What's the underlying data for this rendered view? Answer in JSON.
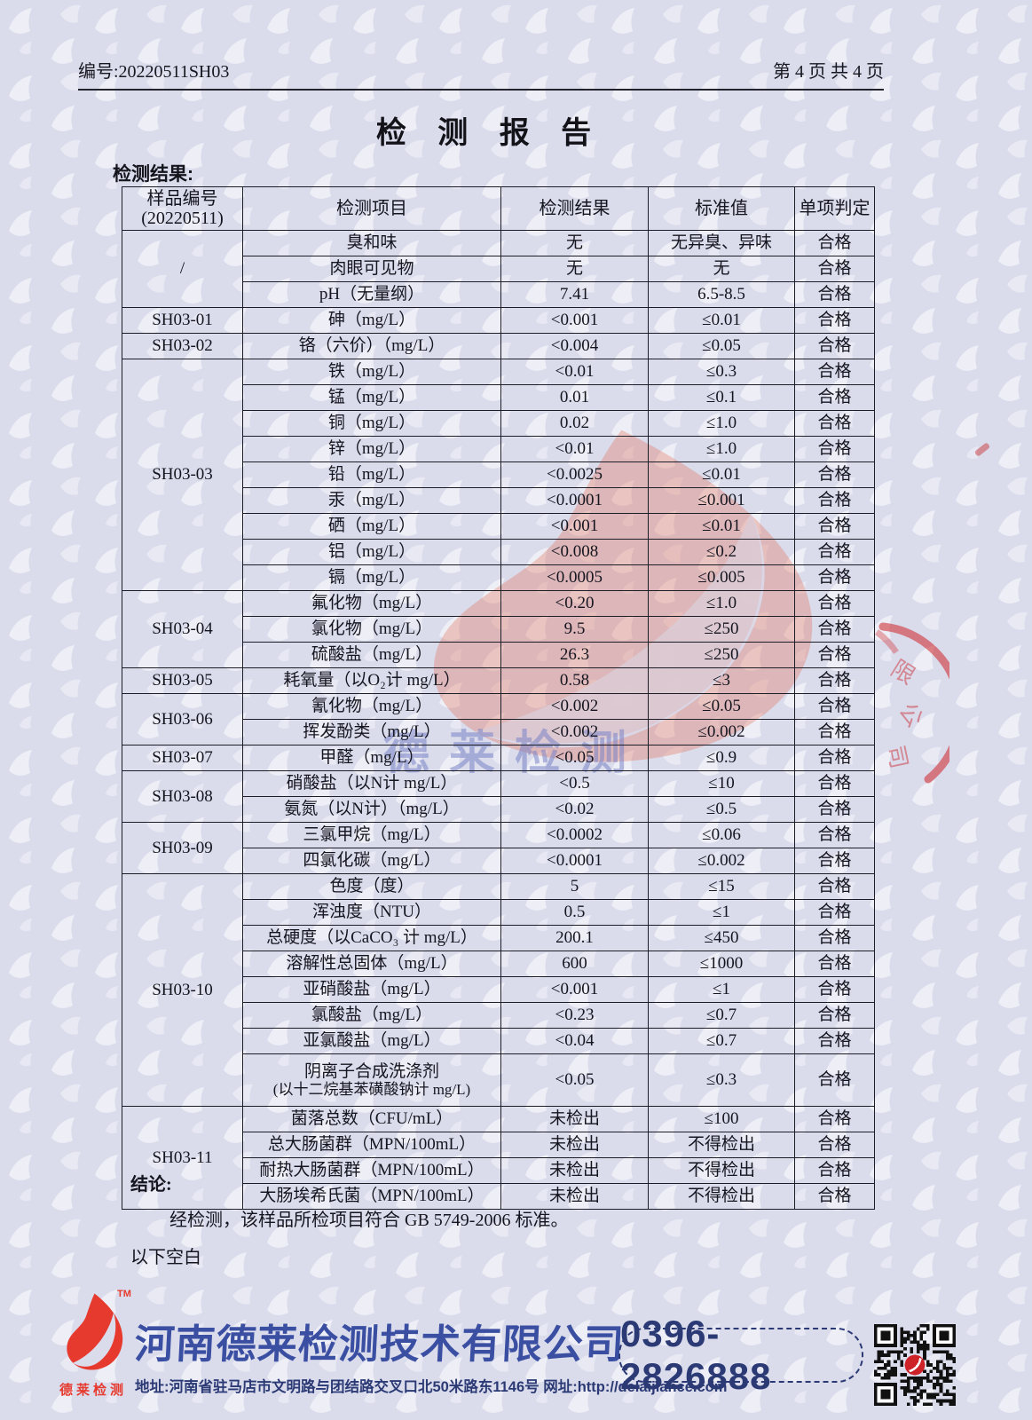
{
  "page": {
    "doc_number": "编号:20220511SH03",
    "page_indicator": "第 4 页 共 4 页",
    "title": "检 测 报 告",
    "section_heading": "检测结果:",
    "conclusion_label": "结论:",
    "conclusion_text": "经检测，该样品所检项目符合 GB 5749-2006 标准。",
    "blank_below": "以下空白"
  },
  "table": {
    "header": {
      "sample_id_line1": "样品编号",
      "sample_id_line2": "(20220511)",
      "item": "检测项目",
      "result": "检测结果",
      "standard": "标准值",
      "verdict": "单项判定"
    },
    "groups": [
      {
        "id": "/",
        "items": [
          {
            "name": "臭和味",
            "result": "无",
            "standard": "无异臭、异味",
            "verdict": "合格"
          },
          {
            "name": "肉眼可见物",
            "result": "无",
            "standard": "无",
            "verdict": "合格"
          },
          {
            "name": "pH（无量纲）",
            "result": "7.41",
            "standard": "6.5-8.5",
            "verdict": "合格"
          }
        ]
      },
      {
        "id": "SH03-01",
        "items": [
          {
            "name": "砷（mg/L）",
            "result": "<0.001",
            "standard": "≤0.01",
            "verdict": "合格"
          }
        ]
      },
      {
        "id": "SH03-02",
        "items": [
          {
            "name": "铬（六价）（mg/L）",
            "result": "<0.004",
            "standard": "≤0.05",
            "verdict": "合格"
          }
        ]
      },
      {
        "id": "SH03-03",
        "items": [
          {
            "name": "铁（mg/L）",
            "result": "<0.01",
            "standard": "≤0.3",
            "verdict": "合格"
          },
          {
            "name": "锰（mg/L）",
            "result": "0.01",
            "standard": "≤0.1",
            "verdict": "合格"
          },
          {
            "name": "铜（mg/L）",
            "result": "0.02",
            "standard": "≤1.0",
            "verdict": "合格"
          },
          {
            "name": "锌（mg/L）",
            "result": "<0.01",
            "standard": "≤1.0",
            "verdict": "合格"
          },
          {
            "name": "铅（mg/L）",
            "result": "<0.0025",
            "standard": "≤0.01",
            "verdict": "合格"
          },
          {
            "name": "汞（mg/L）",
            "result": "<0.0001",
            "standard": "≤0.001",
            "verdict": "合格"
          },
          {
            "name": "硒（mg/L）",
            "result": "<0.001",
            "standard": "≤0.01",
            "verdict": "合格"
          },
          {
            "name": "铝（mg/L）",
            "result": "<0.008",
            "standard": "≤0.2",
            "verdict": "合格"
          },
          {
            "name": "镉（mg/L）",
            "result": "<0.0005",
            "standard": "≤0.005",
            "verdict": "合格"
          }
        ]
      },
      {
        "id": "SH03-04",
        "items": [
          {
            "name": "氟化物（mg/L）",
            "result": "<0.20",
            "standard": "≤1.0",
            "verdict": "合格"
          },
          {
            "name": "氯化物（mg/L）",
            "result": "9.5",
            "standard": "≤250",
            "verdict": "合格"
          },
          {
            "name": "硫酸盐（mg/L）",
            "result": "26.3",
            "standard": "≤250",
            "verdict": "合格"
          }
        ]
      },
      {
        "id": "SH03-05",
        "items": [
          {
            "name": "耗氧量（以O₂计 mg/L）",
            "result": "0.58",
            "standard": "≤3",
            "verdict": "合格"
          }
        ]
      },
      {
        "id": "SH03-06",
        "items": [
          {
            "name": "氰化物（mg/L）",
            "result": "<0.002",
            "standard": "≤0.05",
            "verdict": "合格"
          },
          {
            "name": "挥发酚类（mg/L）",
            "result": "<0.002",
            "standard": "≤0.002",
            "verdict": "合格"
          }
        ]
      },
      {
        "id": "SH03-07",
        "items": [
          {
            "name": "甲醛（mg/L）",
            "result": "<0.05",
            "standard": "≤0.9",
            "verdict": "合格"
          }
        ]
      },
      {
        "id": "SH03-08",
        "items": [
          {
            "name": "硝酸盐（以N计 mg/L）",
            "result": "<0.5",
            "standard": "≤10",
            "verdict": "合格"
          },
          {
            "name": "氨氮（以N计）（mg/L）",
            "result": "<0.02",
            "standard": "≤0.5",
            "verdict": "合格"
          }
        ]
      },
      {
        "id": "SH03-09",
        "items": [
          {
            "name": "三氯甲烷（mg/L）",
            "result": "<0.0002",
            "standard": "≤0.06",
            "verdict": "合格"
          },
          {
            "name": "四氯化碳（mg/L）",
            "result": "<0.0001",
            "standard": "≤0.002",
            "verdict": "合格"
          }
        ]
      },
      {
        "id": "SH03-10",
        "items": [
          {
            "name": "色度（度）",
            "result": "5",
            "standard": "≤15",
            "verdict": "合格"
          },
          {
            "name": "浑浊度（NTU）",
            "result": "0.5",
            "standard": "≤1",
            "verdict": "合格"
          },
          {
            "name": "总硬度（以CaCO₃ 计 mg/L）",
            "result": "200.1",
            "standard": "≤450",
            "verdict": "合格"
          },
          {
            "name": "溶解性总固体（mg/L）",
            "result": "600",
            "standard": "≤1000",
            "verdict": "合格"
          },
          {
            "name": "亚硝酸盐（mg/L）",
            "result": "<0.001",
            "standard": "≤1",
            "verdict": "合格"
          },
          {
            "name": "氯酸盐（mg/L）",
            "result": "<0.23",
            "standard": "≤0.7",
            "verdict": "合格"
          },
          {
            "name": "亚氯酸盐（mg/L）",
            "result": "<0.04",
            "standard": "≤0.7",
            "verdict": "合格"
          },
          {
            "name": "阴离子合成洗涤剂",
            "name2": "(以十二烷基苯磺酸钠计 mg/L)",
            "tall": true,
            "result": "<0.05",
            "standard": "≤0.3",
            "verdict": "合格"
          }
        ]
      },
      {
        "id": "SH03-11",
        "items": [
          {
            "name": "菌落总数（CFU/mL）",
            "result": "未检出",
            "standard": "≤100",
            "verdict": "合格"
          },
          {
            "name": "总大肠菌群（MPN/100mL）",
            "result": "未检出",
            "standard": "不得检出",
            "verdict": "合格"
          },
          {
            "name": "耐热大肠菌群（MPN/100mL）",
            "result": "未检出",
            "standard": "不得检出",
            "verdict": "合格"
          },
          {
            "name": "大肠埃希氏菌（MPN/100mL）",
            "result": "未检出",
            "standard": "不得检出",
            "verdict": "合格"
          }
        ]
      }
    ]
  },
  "watermark": {
    "logo_text": "德莱检测",
    "stamp_chars": [
      "限",
      "公",
      "司"
    ]
  },
  "footer": {
    "logo_tm": "TM",
    "logo_caption": "德莱检测",
    "company_name": "河南德莱检测技术有限公司",
    "address_and_site": "地址:河南省驻马店市文明路与团结路交叉口北50米路东1146号 网址:http://delaijiance.com",
    "phone": "0396-2826888"
  },
  "colors": {
    "paper": "#dadcec",
    "ink": "#15151f",
    "brand_red": "#e63a2e",
    "brand_blue": "#3b4fa2",
    "navy": "#2b3a75",
    "stamp_red": "#cd2328"
  }
}
